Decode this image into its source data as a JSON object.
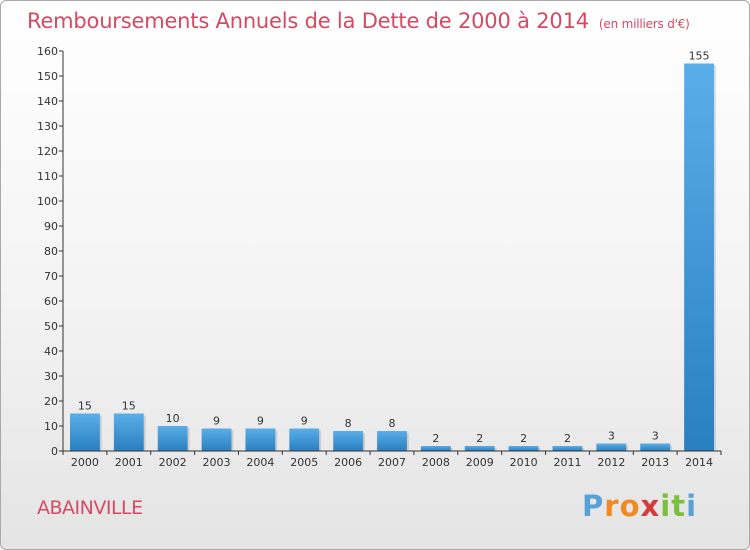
{
  "header": {
    "title": "Remboursements Annuels de la Dette de 2000 à 2014",
    "subtitle": "(en milliers d'€)"
  },
  "footer": {
    "commune": "ABAINVILLE",
    "logo_letters": [
      "P",
      "r",
      "o",
      "x",
      "i",
      "t",
      "i"
    ],
    "logo_colors": [
      "#5aa2d6",
      "#f08a24",
      "#f08a24",
      "#d63a3a",
      "#7bbf3a",
      "#7bbf3a",
      "#5aa2d6"
    ]
  },
  "colors": {
    "title": "#d44a63",
    "bar_light": "#5aaee8",
    "bar_dark": "#2a7fc0",
    "axis": "#333333"
  },
  "chart_data": {
    "type": "bar",
    "title": "Remboursements Annuels de la Dette de 2000 à 2014",
    "subtitle": "(en milliers d'€)",
    "xlabel": "",
    "ylabel": "",
    "categories": [
      "2000",
      "2001",
      "2002",
      "2003",
      "2004",
      "2005",
      "2006",
      "2007",
      "2008",
      "2009",
      "2010",
      "2011",
      "2012",
      "2013",
      "2014"
    ],
    "values": [
      15,
      15,
      10,
      9,
      9,
      9,
      8,
      8,
      2,
      2,
      2,
      2,
      3,
      3,
      155
    ],
    "ylim": [
      0,
      160
    ],
    "yticks": [
      0,
      10,
      20,
      30,
      40,
      50,
      60,
      70,
      80,
      90,
      100,
      110,
      120,
      130,
      140,
      150,
      160
    ],
    "grid": false,
    "legend": "none"
  }
}
